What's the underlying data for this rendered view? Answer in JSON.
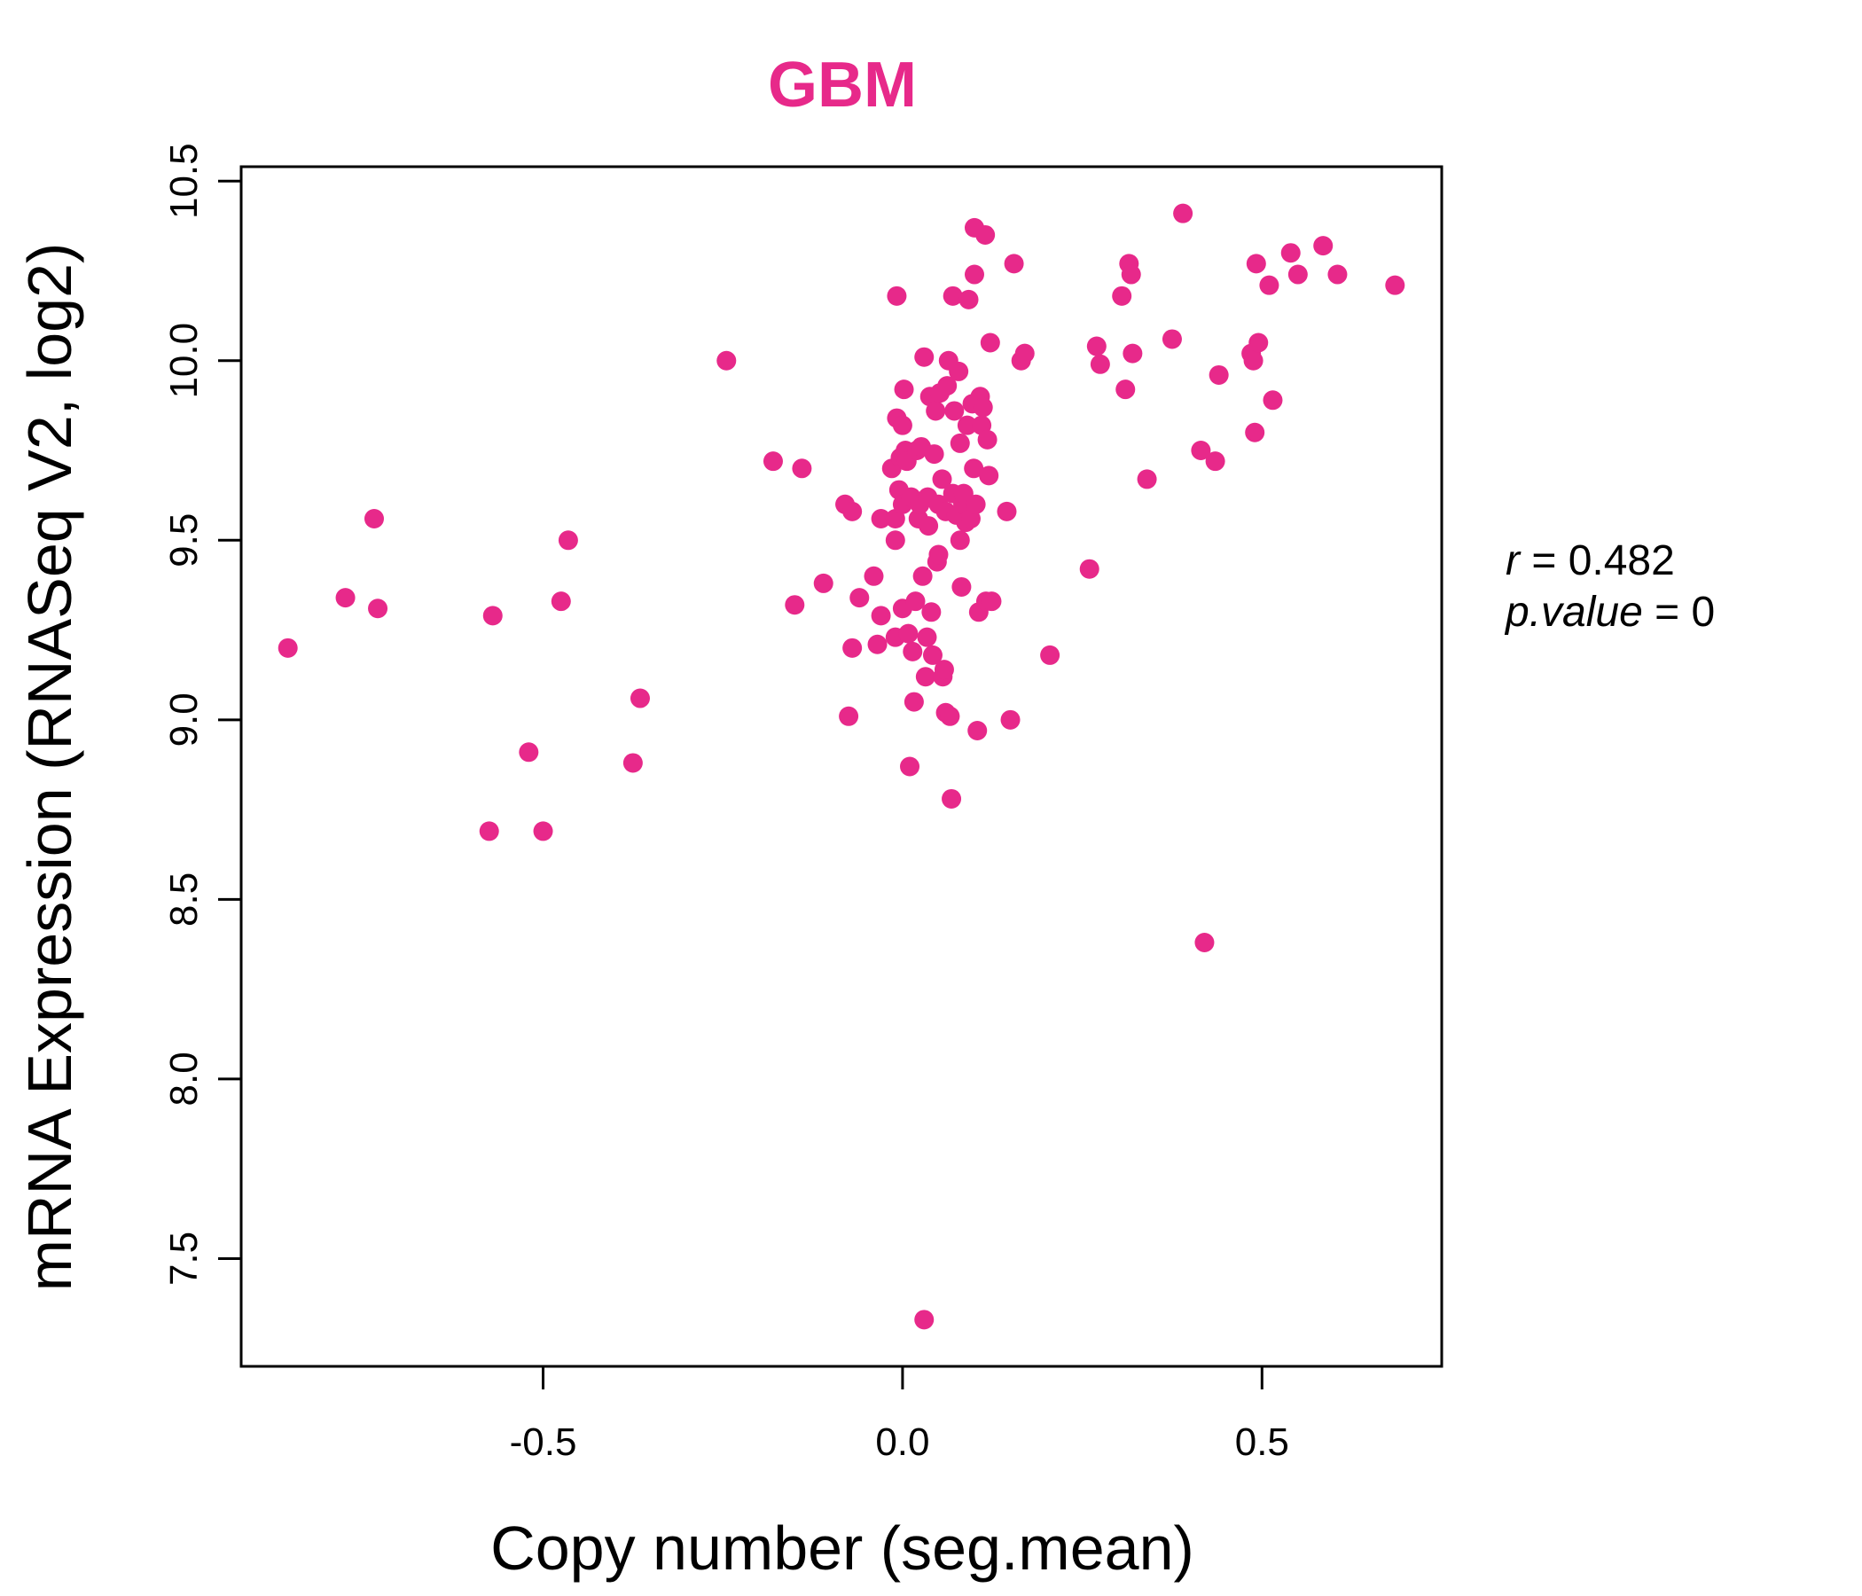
{
  "chart_data": {
    "type": "scatter",
    "title": "GBM",
    "xlabel": "Copy number (seg.mean)",
    "ylabel": "mRNA Expression (RNASeq V2, log2)",
    "xlim": [
      -0.92,
      0.75
    ],
    "ylim": [
      7.2,
      10.54
    ],
    "x_ticks": [
      -0.5,
      0.0,
      0.5
    ],
    "x_tick_labels": [
      "-0.5",
      "0.0",
      "0.5"
    ],
    "y_ticks": [
      7.5,
      8.0,
      8.5,
      9.0,
      9.5,
      10.0,
      10.5
    ],
    "y_tick_labels": [
      "7.5",
      "8.0",
      "8.5",
      "9.0",
      "9.5",
      "10.0",
      "10.5"
    ],
    "grid": false,
    "legend": "none",
    "point_color": "#E7298A",
    "annotations": {
      "r_label": "r",
      "r_value": "0.482",
      "p_label": "p.value",
      "p_value": "0"
    },
    "points": [
      [
        -0.855,
        9.2
      ],
      [
        -0.775,
        9.34
      ],
      [
        -0.735,
        9.56
      ],
      [
        -0.73,
        9.31
      ],
      [
        -0.575,
        8.69
      ],
      [
        -0.57,
        9.29
      ],
      [
        -0.52,
        8.91
      ],
      [
        -0.5,
        8.69
      ],
      [
        -0.475,
        9.33
      ],
      [
        -0.465,
        9.5
      ],
      [
        -0.375,
        8.88
      ],
      [
        -0.365,
        9.06
      ],
      [
        -0.245,
        10.0
      ],
      [
        -0.18,
        9.72
      ],
      [
        -0.15,
        9.32
      ],
      [
        -0.14,
        9.7
      ],
      [
        -0.11,
        9.38
      ],
      [
        -0.08,
        9.6
      ],
      [
        -0.075,
        9.01
      ],
      [
        -0.07,
        9.58
      ],
      [
        -0.07,
        9.2
      ],
      [
        -0.06,
        9.34
      ],
      [
        -0.04,
        9.4
      ],
      [
        -0.035,
        9.21
      ],
      [
        -0.03,
        9.56
      ],
      [
        -0.03,
        9.29
      ],
      [
        -0.015,
        9.7
      ],
      [
        -0.01,
        9.5
      ],
      [
        -0.01,
        9.56
      ],
      [
        -0.01,
        9.23
      ],
      [
        -0.008,
        10.18
      ],
      [
        -0.008,
        9.84
      ],
      [
        -0.005,
        9.64
      ],
      [
        -0.003,
        9.73
      ],
      [
        0.0,
        9.31
      ],
      [
        0.0,
        9.6
      ],
      [
        0.0,
        9.82
      ],
      [
        0.002,
        9.92
      ],
      [
        0.004,
        9.75
      ],
      [
        0.006,
        9.72
      ],
      [
        0.008,
        9.24
      ],
      [
        0.01,
        8.87
      ],
      [
        0.012,
        9.62
      ],
      [
        0.014,
        9.19
      ],
      [
        0.016,
        9.05
      ],
      [
        0.018,
        9.33
      ],
      [
        0.02,
        9.75
      ],
      [
        0.022,
        9.56
      ],
      [
        0.024,
        9.6
      ],
      [
        0.026,
        9.76
      ],
      [
        0.028,
        9.4
      ],
      [
        0.03,
        7.33
      ],
      [
        0.03,
        10.01
      ],
      [
        0.032,
        9.12
      ],
      [
        0.034,
        9.23
      ],
      [
        0.035,
        9.62
      ],
      [
        0.036,
        9.54
      ],
      [
        0.038,
        9.9
      ],
      [
        0.04,
        9.3
      ],
      [
        0.042,
        9.18
      ],
      [
        0.044,
        9.74
      ],
      [
        0.046,
        9.86
      ],
      [
        0.048,
        9.44
      ],
      [
        0.05,
        9.46
      ],
      [
        0.05,
        9.6
      ],
      [
        0.052,
        9.91
      ],
      [
        0.055,
        9.67
      ],
      [
        0.056,
        9.12
      ],
      [
        0.058,
        9.14
      ],
      [
        0.06,
        9.02
      ],
      [
        0.06,
        9.58
      ],
      [
        0.062,
        9.93
      ],
      [
        0.064,
        10.0
      ],
      [
        0.066,
        9.01
      ],
      [
        0.068,
        8.78
      ],
      [
        0.07,
        9.63
      ],
      [
        0.07,
        10.18
      ],
      [
        0.072,
        9.86
      ],
      [
        0.075,
        9.57
      ],
      [
        0.078,
        9.97
      ],
      [
        0.08,
        9.5
      ],
      [
        0.08,
        9.77
      ],
      [
        0.082,
        9.37
      ],
      [
        0.084,
        9.6
      ],
      [
        0.085,
        9.63
      ],
      [
        0.088,
        9.55
      ],
      [
        0.09,
        9.82
      ],
      [
        0.092,
        10.17
      ],
      [
        0.095,
        9.56
      ],
      [
        0.097,
        9.88
      ],
      [
        0.099,
        9.7
      ],
      [
        0.1,
        10.37
      ],
      [
        0.1,
        10.24
      ],
      [
        0.102,
        9.6
      ],
      [
        0.104,
        8.97
      ],
      [
        0.106,
        9.3
      ],
      [
        0.108,
        9.9
      ],
      [
        0.11,
        9.82
      ],
      [
        0.112,
        9.87
      ],
      [
        0.115,
        10.35
      ],
      [
        0.116,
        9.33
      ],
      [
        0.118,
        9.78
      ],
      [
        0.12,
        9.68
      ],
      [
        0.122,
        10.05
      ],
      [
        0.124,
        9.33
      ],
      [
        0.145,
        9.58
      ],
      [
        0.15,
        9.0
      ],
      [
        0.155,
        10.27
      ],
      [
        0.165,
        10.0
      ],
      [
        0.17,
        10.02
      ],
      [
        0.205,
        9.18
      ],
      [
        0.26,
        9.42
      ],
      [
        0.27,
        10.04
      ],
      [
        0.275,
        9.99
      ],
      [
        0.305,
        10.18
      ],
      [
        0.31,
        9.92
      ],
      [
        0.315,
        10.27
      ],
      [
        0.318,
        10.24
      ],
      [
        0.32,
        10.02
      ],
      [
        0.34,
        9.67
      ],
      [
        0.375,
        10.06
      ],
      [
        0.39,
        10.41
      ],
      [
        0.415,
        9.75
      ],
      [
        0.42,
        8.38
      ],
      [
        0.435,
        9.72
      ],
      [
        0.44,
        9.96
      ],
      [
        0.485,
        10.02
      ],
      [
        0.488,
        10.0
      ],
      [
        0.49,
        9.8
      ],
      [
        0.492,
        10.27
      ],
      [
        0.495,
        10.05
      ],
      [
        0.51,
        10.21
      ],
      [
        0.515,
        9.89
      ],
      [
        0.54,
        10.3
      ],
      [
        0.55,
        10.24
      ],
      [
        0.585,
        10.32
      ],
      [
        0.605,
        10.24
      ],
      [
        0.685,
        10.21
      ]
    ]
  }
}
